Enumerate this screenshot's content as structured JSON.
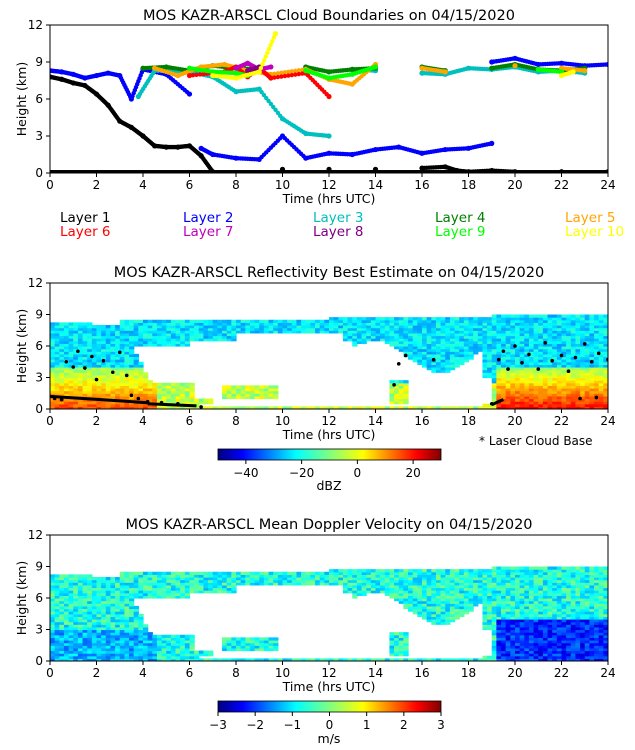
{
  "chart_data": [
    {
      "type": "scatter",
      "title": "MOS KAZR-ARSCL Cloud Boundaries on 04/15/2020",
      "xlabel": "Time (hrs UTC)",
      "ylabel": "Height (km)",
      "xlim": [
        0,
        24
      ],
      "ylim": [
        0,
        12
      ],
      "xticks": [
        "0",
        "2",
        "4",
        "6",
        "8",
        "10",
        "12",
        "14",
        "16",
        "18",
        "20",
        "22",
        "24"
      ],
      "yticks": [
        "0",
        "3",
        "6",
        "9",
        "12"
      ],
      "legend": [
        {
          "name": "Layer 1",
          "color": "#000000"
        },
        {
          "name": "Layer 2",
          "color": "#0000ff"
        },
        {
          "name": "Layer 3",
          "color": "#00bfbf"
        },
        {
          "name": "Layer 4",
          "color": "#008000"
        },
        {
          "name": "Layer 5",
          "color": "#ffa500"
        },
        {
          "name": "Layer 6",
          "color": "#ff0000"
        },
        {
          "name": "Layer 7",
          "color": "#bf00bf"
        },
        {
          "name": "Layer 8",
          "color": "#800080"
        },
        {
          "name": "Layer 9",
          "color": "#00ff00"
        },
        {
          "name": "Layer 10",
          "color": "#ffff00"
        }
      ],
      "series": [
        {
          "name": "Layer 1",
          "color": "#000000",
          "points": [
            [
              0,
              7.8
            ],
            [
              0.5,
              7.6
            ],
            [
              1,
              7.3
            ],
            [
              1.5,
              7.1
            ],
            [
              2,
              6.4
            ],
            [
              2.5,
              5.5
            ],
            [
              3,
              4.2
            ],
            [
              3.5,
              3.7
            ],
            [
              4,
              3.0
            ],
            [
              4.5,
              2.2
            ],
            [
              5,
              2.1
            ],
            [
              5.5,
              2.1
            ],
            [
              6,
              2.2
            ],
            [
              6.5,
              1.4
            ],
            [
              7,
              0.1
            ],
            [
              10,
              0.3
            ],
            [
              12,
              0.3
            ],
            [
              14,
              0.3
            ],
            [
              16,
              0.4
            ],
            [
              17,
              0.5
            ],
            [
              17.5,
              0.2
            ],
            [
              18,
              0.1
            ],
            [
              19,
              0.2
            ],
            [
              20,
              0.1
            ],
            [
              22,
              0.1
            ],
            [
              24,
              0.1
            ]
          ]
        },
        {
          "name": "Layer 2",
          "color": "#0000ff",
          "points": [
            [
              0,
              8.3
            ],
            [
              0.5,
              8.2
            ],
            [
              1,
              8.0
            ],
            [
              1.5,
              7.7
            ],
            [
              2,
              7.9
            ],
            [
              2.5,
              8.1
            ],
            [
              3,
              7.9
            ],
            [
              3.5,
              6.0
            ],
            [
              4,
              8.4
            ],
            [
              5,
              8.0
            ],
            [
              6,
              6.4
            ],
            [
              6.5,
              2.0
            ],
            [
              7,
              1.5
            ],
            [
              8,
              1.2
            ],
            [
              9,
              1.1
            ],
            [
              10,
              3.0
            ],
            [
              11,
              1.2
            ],
            [
              12,
              1.6
            ],
            [
              13,
              1.5
            ],
            [
              14,
              1.9
            ],
            [
              15,
              2.1
            ],
            [
              16,
              1.6
            ],
            [
              17,
              1.9
            ],
            [
              18,
              2.0
            ],
            [
              19,
              2.4
            ],
            [
              19,
              9.0
            ],
            [
              20,
              9.3
            ],
            [
              21,
              8.8
            ],
            [
              22,
              8.9
            ],
            [
              23,
              8.7
            ],
            [
              24,
              8.8
            ]
          ]
        },
        {
          "name": "Layer 3",
          "color": "#00bfbf",
          "points": [
            [
              3.8,
              6.2
            ],
            [
              4.5,
              8.3
            ],
            [
              6,
              8.2
            ],
            [
              7,
              7.8
            ],
            [
              8,
              6.6
            ],
            [
              9,
              6.8
            ],
            [
              10,
              4.4
            ],
            [
              11,
              3.2
            ],
            [
              12,
              3.0
            ],
            [
              13,
              8.4
            ],
            [
              14,
              8.3
            ],
            [
              16,
              8.1
            ],
            [
              17,
              8.0
            ],
            [
              18,
              8.5
            ],
            [
              19,
              8.4
            ],
            [
              20,
              8.6
            ],
            [
              21,
              8.2
            ],
            [
              22,
              8.3
            ],
            [
              23,
              8.1
            ]
          ]
        },
        {
          "name": "Layer 4",
          "color": "#008000",
          "points": [
            [
              4,
              8.5
            ],
            [
              5,
              8.6
            ],
            [
              6,
              8.3
            ],
            [
              7,
              8.7
            ],
            [
              8,
              8.5
            ],
            [
              9,
              8.4
            ],
            [
              11,
              8.6
            ],
            [
              12,
              8.2
            ],
            [
              13,
              8.4
            ],
            [
              14,
              8.5
            ],
            [
              16,
              8.6
            ],
            [
              17,
              8.3
            ],
            [
              19,
              8.5
            ],
            [
              20,
              8.8
            ],
            [
              21,
              8.4
            ],
            [
              22,
              8.3
            ],
            [
              23,
              8.5
            ]
          ]
        },
        {
          "name": "Layer 5",
          "color": "#ffa500",
          "points": [
            [
              4.5,
              8.5
            ],
            [
              5.5,
              7.9
            ],
            [
              6.5,
              8.6
            ],
            [
              7.5,
              8.8
            ],
            [
              8.5,
              8.3
            ],
            [
              9.5,
              8.0
            ],
            [
              11,
              8.4
            ],
            [
              12,
              7.6
            ],
            [
              13,
              7.2
            ],
            [
              14,
              8.8
            ],
            [
              16,
              8.5
            ],
            [
              17,
              8.2
            ],
            [
              20,
              8.7
            ],
            [
              22,
              8.5
            ],
            [
              23,
              8.3
            ]
          ]
        },
        {
          "name": "Layer 6",
          "color": "#ff0000",
          "points": [
            [
              6,
              7.9
            ],
            [
              7.5,
              8.2
            ],
            [
              8,
              8.6
            ],
            [
              8.5,
              7.8
            ],
            [
              9,
              8.5
            ],
            [
              9.5,
              7.7
            ],
            [
              11,
              8.1
            ],
            [
              12,
              6.2
            ]
          ]
        },
        {
          "name": "Layer 7",
          "color": "#bf00bf",
          "points": [
            [
              8,
              8.5
            ],
            [
              8.5,
              8.9
            ],
            [
              9,
              8.4
            ],
            [
              9.5,
              8.6
            ]
          ]
        },
        {
          "name": "Layer 8",
          "color": "#800080",
          "points": [
            [
              8.5,
              8.3
            ],
            [
              9,
              8.6
            ]
          ]
        },
        {
          "name": "Layer 9",
          "color": "#00ff00",
          "points": [
            [
              6,
              8.5
            ],
            [
              7,
              8.2
            ],
            [
              8,
              8.1
            ],
            [
              8.5,
              7.9
            ],
            [
              11,
              8.3
            ],
            [
              12,
              7.7
            ],
            [
              13,
              8.0
            ],
            [
              14,
              8.6
            ],
            [
              21,
              8.4
            ],
            [
              22,
              8.2
            ]
          ]
        },
        {
          "name": "Layer 10",
          "color": "#ffff00",
          "points": [
            [
              7,
              7.9
            ],
            [
              8,
              7.7
            ],
            [
              9,
              8.2
            ],
            [
              9.7,
              11.3
            ],
            [
              22,
              7.9
            ],
            [
              22.5,
              8.2
            ]
          ]
        }
      ]
    },
    {
      "type": "heatmap",
      "title": "MOS KAZR-ARSCL Reflectivity Best Estimate on 04/15/2020",
      "xlabel": "Time (hrs UTC)",
      "ylabel": "Height (km)",
      "xlim": [
        0,
        24
      ],
      "ylim": [
        0,
        12
      ],
      "xticks": [
        "0",
        "2",
        "4",
        "6",
        "8",
        "10",
        "12",
        "14",
        "16",
        "18",
        "20",
        "22",
        "24"
      ],
      "yticks": [
        "0",
        "3",
        "6",
        "9",
        "12"
      ],
      "annotation": "* Laser Cloud Base",
      "colorbar": {
        "label": "dBZ",
        "min": -50,
        "max": 30,
        "ticks": [
          "−40",
          "−20",
          "0",
          "20"
        ],
        "tick_values": [
          -40,
          -20,
          0,
          20
        ],
        "colormap": "jet"
      },
      "laser_cloud_base": [
        [
          0.2,
          1.0
        ],
        [
          0.5,
          0.9
        ],
        [
          0.7,
          4.5
        ],
        [
          1,
          4.0
        ],
        [
          1.2,
          5.5
        ],
        [
          1.5,
          3.9
        ],
        [
          1.8,
          5.0
        ],
        [
          2,
          2.8
        ],
        [
          2.3,
          4.6
        ],
        [
          2.7,
          3.5
        ],
        [
          3,
          5.4
        ],
        [
          3.3,
          3.2
        ],
        [
          3.5,
          1.3
        ],
        [
          3.8,
          1.0
        ],
        [
          4.2,
          0.7
        ],
        [
          4.8,
          0.6
        ],
        [
          5.5,
          0.5
        ],
        [
          6.5,
          0.2
        ],
        [
          19,
          0.5
        ],
        [
          19.3,
          4.7
        ],
        [
          19.5,
          5.5
        ],
        [
          19.7,
          3.8
        ],
        [
          20,
          6.0
        ],
        [
          20.3,
          4.4
        ],
        [
          20.6,
          5.2
        ],
        [
          21,
          3.8
        ],
        [
          21.3,
          6.3
        ],
        [
          21.6,
          4.6
        ],
        [
          22,
          5.1
        ],
        [
          22.3,
          3.6
        ],
        [
          22.6,
          4.9
        ],
        [
          23,
          6.2
        ],
        [
          23.3,
          4.5
        ],
        [
          23.6,
          5.3
        ],
        [
          24,
          4.7
        ],
        [
          14.8,
          2.3
        ],
        [
          15,
          4.3
        ],
        [
          15.3,
          5.1
        ],
        [
          16.5,
          4.7
        ],
        [
          23.5,
          1.1
        ],
        [
          22.8,
          1.0
        ]
      ]
    },
    {
      "type": "heatmap",
      "title": "MOS KAZR-ARSCL Mean Doppler Velocity on 04/15/2020",
      "xlabel": "Time (hrs UTC)",
      "ylabel": "Height (km)",
      "xlim": [
        0,
        24
      ],
      "ylim": [
        0,
        12
      ],
      "xticks": [
        "0",
        "2",
        "4",
        "6",
        "8",
        "10",
        "12",
        "14",
        "16",
        "18",
        "20",
        "22",
        "24"
      ],
      "yticks": [
        "0",
        "3",
        "6",
        "9",
        "12"
      ],
      "colorbar": {
        "label": "m/s",
        "min": -3,
        "max": 3,
        "ticks": [
          "−3",
          "−2",
          "−1",
          "0",
          "1",
          "2",
          "3"
        ],
        "tick_values": [
          -3,
          -2,
          -1,
          0,
          1,
          2,
          3
        ],
        "colormap": "jet"
      }
    }
  ]
}
